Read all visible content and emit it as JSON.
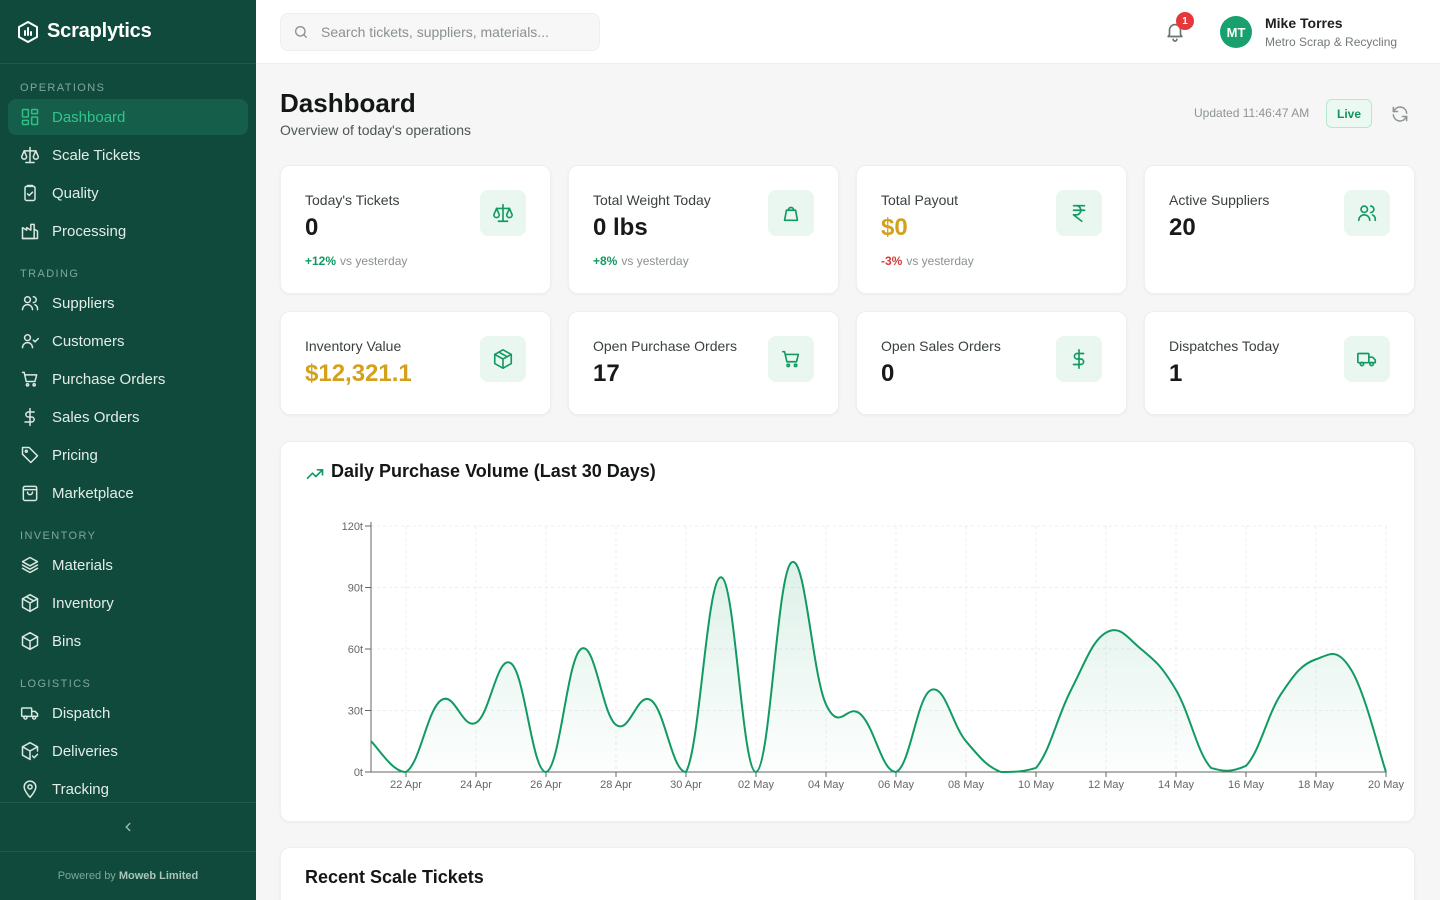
{
  "app": {
    "name": "Scraplytics"
  },
  "sidebar": {
    "sections": [
      {
        "title": "OPERATIONS",
        "items": [
          {
            "label": "Dashboard",
            "icon": "layout-grid-icon",
            "active": true
          },
          {
            "label": "Scale Tickets",
            "icon": "scale-icon"
          },
          {
            "label": "Quality",
            "icon": "clipboard-check-icon"
          },
          {
            "label": "Processing",
            "icon": "factory-icon"
          }
        ]
      },
      {
        "title": "TRADING",
        "items": [
          {
            "label": "Suppliers",
            "icon": "users-icon"
          },
          {
            "label": "Customers",
            "icon": "user-check-icon"
          },
          {
            "label": "Purchase Orders",
            "icon": "cart-icon"
          },
          {
            "label": "Sales Orders",
            "icon": "dollar-icon"
          },
          {
            "label": "Pricing",
            "icon": "tag-icon"
          },
          {
            "label": "Marketplace",
            "icon": "shopping-bag-icon"
          }
        ]
      },
      {
        "title": "INVENTORY",
        "items": [
          {
            "label": "Materials",
            "icon": "layers-icon"
          },
          {
            "label": "Inventory",
            "icon": "package-icon"
          },
          {
            "label": "Bins",
            "icon": "box-icon"
          }
        ]
      },
      {
        "title": "LOGISTICS",
        "items": [
          {
            "label": "Dispatch",
            "icon": "truck-icon"
          },
          {
            "label": "Deliveries",
            "icon": "package-check-icon"
          },
          {
            "label": "Tracking",
            "icon": "map-pin-icon"
          }
        ]
      }
    ],
    "footer_prefix": "Powered by",
    "footer_company": "Moweb Limited"
  },
  "topbar": {
    "search_placeholder": "Search tickets, suppliers, materials...",
    "notification_count": "1",
    "user_initials": "MT",
    "user_name": "Mike Torres",
    "user_org": "Metro Scrap & Recycling"
  },
  "header": {
    "title": "Dashboard",
    "subtitle": "Overview of today's operations",
    "updated": "Updated 11:46:47 AM",
    "live_label": "Live"
  },
  "stats": [
    {
      "label": "Today's Tickets",
      "value": "0",
      "delta": "+12%",
      "delta_dir": "up",
      "delta_suffix": "vs yesterday",
      "icon": "scale-icon"
    },
    {
      "label": "Total Weight Today",
      "value": "0 lbs",
      "delta": "+8%",
      "delta_dir": "up",
      "delta_suffix": "vs yesterday",
      "icon": "weight-icon"
    },
    {
      "label": "Total Payout",
      "value": "$0",
      "value_color": "gold",
      "delta": "-3%",
      "delta_dir": "down",
      "delta_suffix": "vs yesterday",
      "icon": "rupee-icon"
    },
    {
      "label": "Active Suppliers",
      "value": "20",
      "icon": "users-icon"
    },
    {
      "label": "Inventory Value",
      "value": "$12,321.1",
      "value_color": "gold",
      "icon": "package-icon"
    },
    {
      "label": "Open Purchase Orders",
      "value": "17",
      "icon": "cart-icon"
    },
    {
      "label": "Open Sales Orders",
      "value": "0",
      "icon": "dollar-icon"
    },
    {
      "label": "Dispatches Today",
      "value": "1",
      "icon": "truck-icon"
    }
  ],
  "colors": {
    "accent": "#139a63",
    "sidebar": "#0f4a3c",
    "gold": "#d4a11c",
    "danger": "#d93a3a"
  },
  "chart_data": {
    "type": "area",
    "title": "Daily Purchase Volume (Last 30 Days)",
    "ylim": [
      0,
      120
    ],
    "y_ticks": [
      "0t",
      "30t",
      "60t",
      "90t",
      "120t"
    ],
    "x_tick_labels": [
      "22 Apr",
      "24 Apr",
      "26 Apr",
      "28 Apr",
      "30 Apr",
      "02 May",
      "04 May",
      "06 May",
      "08 May",
      "10 May",
      "12 May",
      "14 May",
      "16 May",
      "18 May",
      "20 May"
    ],
    "x": [
      "21 Apr",
      "22 Apr",
      "23 Apr",
      "24 Apr",
      "25 Apr",
      "26 Apr",
      "27 Apr",
      "28 Apr",
      "29 Apr",
      "30 Apr",
      "01 May",
      "02 May",
      "03 May",
      "04 May",
      "05 May",
      "06 May",
      "07 May",
      "08 May",
      "09 May",
      "10 May",
      "11 May",
      "12 May",
      "13 May",
      "14 May",
      "15 May",
      "16 May",
      "17 May",
      "18 May",
      "19 May",
      "20 May"
    ],
    "series": [
      {
        "values": [
          15,
          0,
          35,
          24,
          53,
          0,
          60,
          23,
          35,
          0,
          95,
          0,
          102,
          33,
          28,
          0,
          40,
          15,
          0,
          2,
          40,
          68,
          60,
          40,
          2,
          3,
          38,
          55,
          50,
          0
        ]
      }
    ],
    "grid": true,
    "legend": "none"
  },
  "recent": {
    "title": "Recent Scale Tickets"
  }
}
